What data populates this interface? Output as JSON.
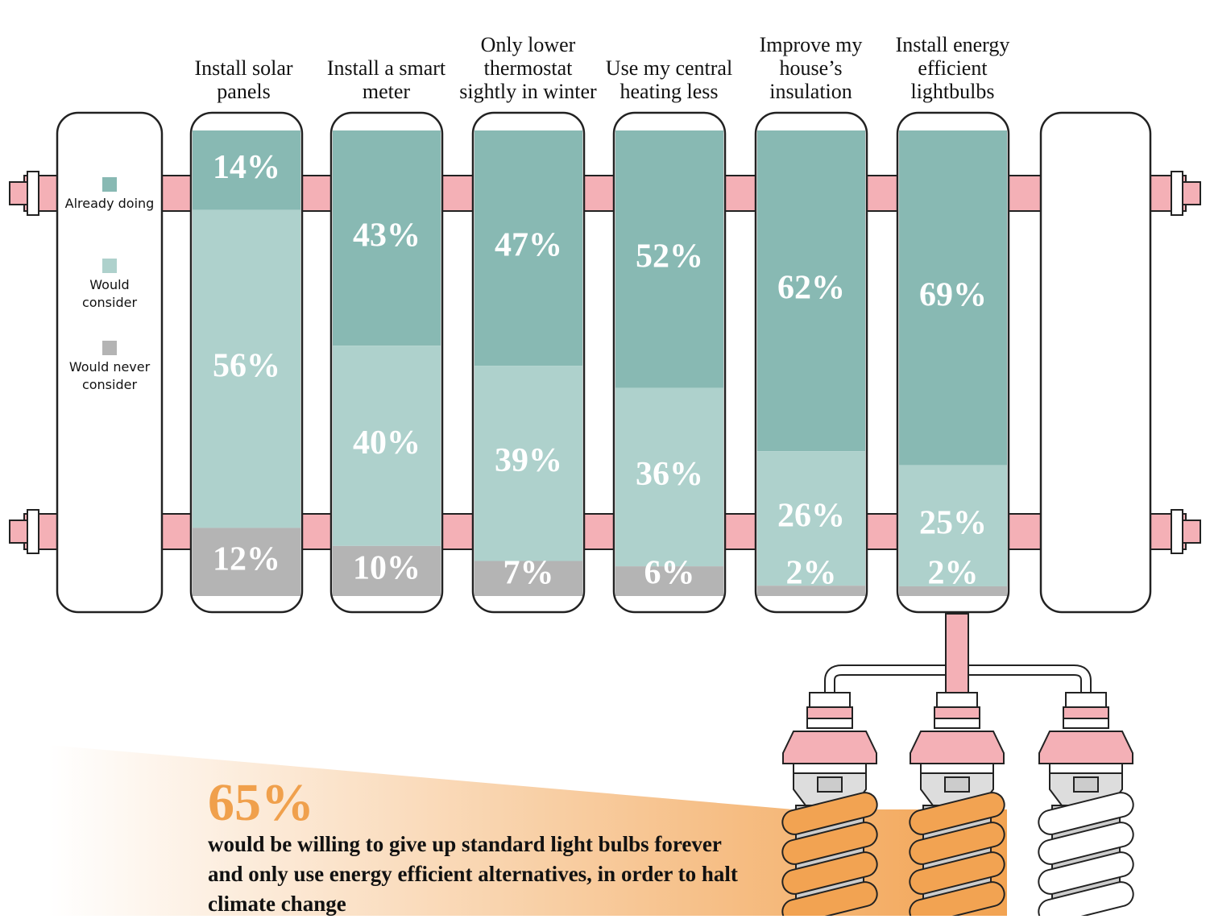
{
  "chart_data": {
    "type": "stacked-bar",
    "categories": [
      "Install solar panels",
      "Install a smart meter",
      "Only lower thermostat sightly in winter",
      "Use my central heating less",
      "Improve my house’s insulation",
      "Install energy efficient lightbulbs"
    ],
    "series": [
      {
        "name": "Already doing",
        "color": "#88b9b3",
        "values": [
          14,
          43,
          47,
          52,
          62,
          69
        ],
        "value_labels": [
          "14%",
          "43%",
          "47%",
          "52%",
          "62%",
          "69%"
        ]
      },
      {
        "name": "Would consider",
        "color": "#aed1cc",
        "values": [
          56,
          40,
          39,
          36,
          26,
          25
        ],
        "value_labels": [
          "56%",
          "40%",
          "39%",
          "36%",
          "26%",
          "25%"
        ]
      },
      {
        "name": "Would never consider",
        "color": "#b4b4b4",
        "values": [
          12,
          10,
          7,
          6,
          2,
          2
        ],
        "value_labels": [
          "12%",
          "10%",
          "7%",
          "6%",
          "2%",
          "2%"
        ]
      }
    ],
    "annotation": {
      "figure": "65%",
      "text": "would be willing to give up standard light bulbs forever and only use energy efficient alternatives, in order to halt climate change"
    }
  }
}
